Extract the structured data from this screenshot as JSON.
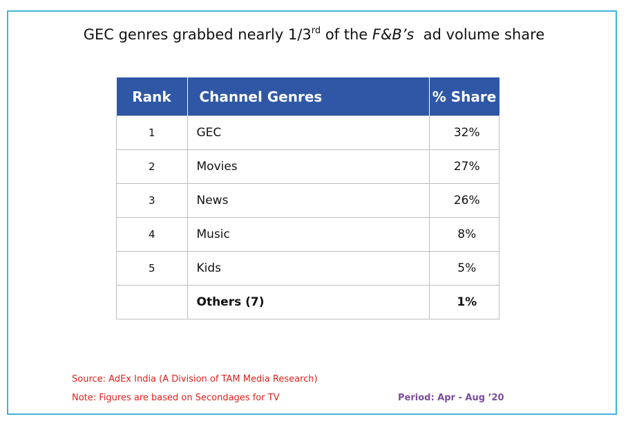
{
  "title": {
    "prefix": "GEC genres grabbed nearly 1/3",
    "superscript": "rd",
    "middle": " of the ",
    "italic": "F&B’s",
    "suffix": "  ad volume share"
  },
  "table": {
    "headers": {
      "rank": "Rank",
      "genre": "Channel Genres",
      "share": "% Share"
    },
    "rows": [
      {
        "rank": "1",
        "genre": "GEC",
        "share": "32%"
      },
      {
        "rank": "2",
        "genre": "Movies",
        "share": "27%"
      },
      {
        "rank": "3",
        "genre": "News",
        "share": "26%"
      },
      {
        "rank": "4",
        "genre": "Music",
        "share": "8%"
      },
      {
        "rank": "5",
        "genre": "Kids",
        "share": "5%"
      },
      {
        "rank": "",
        "genre": "Others (7)",
        "share": "1%"
      }
    ]
  },
  "footer": {
    "source": "Source: AdEx India (A Division of TAM Media Research)",
    "note": "Note: Figures are based on Secondages for TV",
    "period": "Period: Apr - Aug ’20"
  },
  "colors": {
    "frame_border": "#3fb4d8",
    "header_background": "#2f57a6",
    "footer_text": "#e0201b",
    "period_text": "#7b4d9c"
  }
}
